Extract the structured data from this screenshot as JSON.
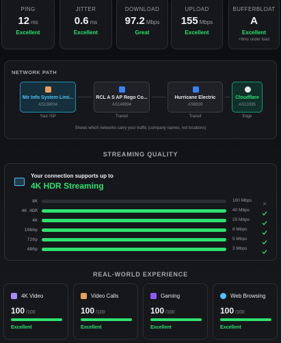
{
  "metrics": [
    {
      "label": "PING",
      "value": 12,
      "unit": "ms",
      "rating": "Excellent"
    },
    {
      "label": "JITTER",
      "value": 0.6,
      "unit": "ms",
      "rating": "Excellent"
    },
    {
      "label": "DOWNLOAD",
      "value": 97.2,
      "unit": "Mbps",
      "rating": "Great"
    },
    {
      "label": "UPLOAD",
      "value": 155,
      "unit": "Mbps",
      "rating": "Excellent"
    },
    {
      "label": "BUFFERBLOAT",
      "value": "A",
      "rating": "Excellent",
      "note": "+8ms under load"
    }
  ],
  "network_path": {
    "title": "NETWORK PATH",
    "nodes": [
      {
        "name": "Mir Info System Limi...",
        "asn": "AS138004",
        "role": "Your ISP"
      },
      {
        "name": "RCL A S AP Rego Co...",
        "asn": "AS149994",
        "role": "Transit"
      },
      {
        "name": "Hurricane Electric",
        "asn": "AS6939",
        "role": "Transit"
      },
      {
        "name": "Cloudflare",
        "asn": "AS13335",
        "role": "Edge"
      }
    ],
    "note": "Shows which networks carry your traffic (company names, not locations)"
  },
  "streaming": {
    "heading": "STREAMING QUALITY",
    "intro": "Your connection supports up to",
    "best": "4K HDR Streaming",
    "rows": [
      {
        "label": "8K",
        "requirement": "100 Mbps",
        "supported": false
      },
      {
        "label": "4K HDR",
        "requirement": "40 Mbps",
        "supported": true
      },
      {
        "label": "4K",
        "requirement": "25 Mbps",
        "supported": true
      },
      {
        "label": "1080p",
        "requirement": "8 Mbps",
        "supported": true
      },
      {
        "label": "720p",
        "requirement": "5 Mbps",
        "supported": true
      },
      {
        "label": "480p",
        "requirement": "3 Mbps",
        "supported": true
      }
    ]
  },
  "experience": {
    "heading": "REAL-WORLD EXPERIENCE",
    "items": [
      {
        "name": "4K Video",
        "score": 100,
        "max": 100,
        "rating": "Excellent"
      },
      {
        "name": "Video Calls",
        "score": 100,
        "max": 100,
        "rating": "Excellent"
      },
      {
        "name": "Gaming",
        "score": 100,
        "max": 100,
        "rating": "Excellent"
      },
      {
        "name": "Web Browsing",
        "score": 100,
        "max": 100,
        "rating": "Excellent"
      }
    ]
  }
}
